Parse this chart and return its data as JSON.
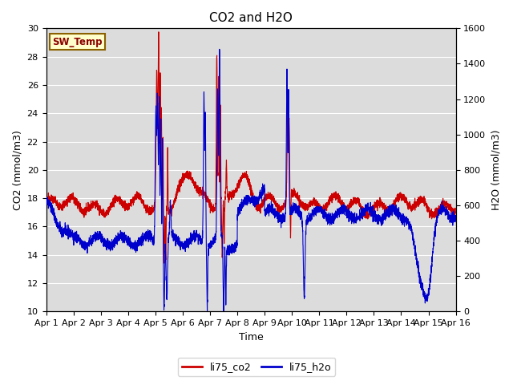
{
  "title": "CO2 and H2O",
  "xlabel": "Time",
  "ylabel_left": "CO2 (mmol/m3)",
  "ylabel_right": "H2O (mmol/m3)",
  "xlim_days": [
    0,
    15
  ],
  "ylim_left": [
    10,
    30
  ],
  "ylim_right": [
    0,
    1600
  ],
  "yticks_left": [
    10,
    12,
    14,
    16,
    18,
    20,
    22,
    24,
    26,
    28,
    30
  ],
  "yticks_right": [
    0,
    200,
    400,
    600,
    800,
    1000,
    1200,
    1400,
    1600
  ],
  "xtick_labels": [
    "Apr 1",
    "Apr 2",
    "Apr 3",
    "Apr 4",
    "Apr 5",
    "Apr 6",
    "Apr 7",
    "Apr 8",
    "Apr 9",
    "Apr 10",
    "Apr 11",
    "Apr 12",
    "Apr 13",
    "Apr 14",
    "Apr 15",
    "Apr 16"
  ],
  "color_co2": "#cc0000",
  "color_h2o": "#0000cc",
  "legend_label_co2": "li75_co2",
  "legend_label_h2o": "li75_h2o",
  "sw_temp_label": "SW_Temp",
  "plot_bg_color": "#dcdcdc",
  "grid_color": "#ffffff",
  "linewidth": 0.8
}
